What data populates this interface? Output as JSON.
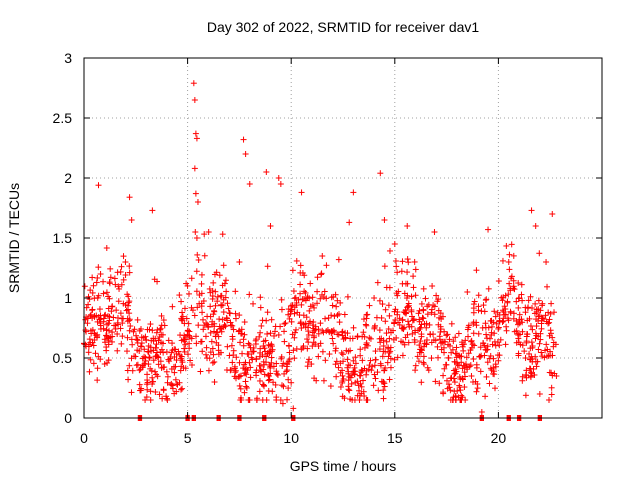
{
  "chart_data": {
    "type": "scatter",
    "title": "Day 302 of 2022, SRMTID for receiver dav1",
    "xlabel": "GPS time / hours",
    "ylabel": "SRMTID / TECUs",
    "xlim": [
      0,
      25
    ],
    "ylim": [
      0,
      3
    ],
    "xticks": [
      0,
      5,
      10,
      15,
      20
    ],
    "xtick_labels": [
      "0",
      "5",
      "10",
      "15",
      "20"
    ],
    "yticks": [
      0,
      0.5,
      1,
      1.5,
      2,
      2.5,
      3
    ],
    "ytick_labels": [
      "0",
      "0.5",
      "1",
      "1.5",
      "2",
      "2.5",
      "3"
    ],
    "grid": true,
    "marker": "+",
    "series": [
      {
        "name": "SRMTID",
        "color": "#ff0000",
        "mean_level": 0.65,
        "typical_range": [
          0.2,
          1.4
        ],
        "x_range": [
          0,
          22.8
        ],
        "points": [
          [
            0.1,
            0.72
          ],
          [
            0.3,
            0.85
          ],
          [
            0.5,
            0.65
          ],
          [
            0.7,
            1.94
          ],
          [
            0.8,
            1.2
          ],
          [
            1.0,
            0.45
          ],
          [
            1.6,
            0.7
          ],
          [
            2.0,
            1.3
          ],
          [
            2.2,
            1.84
          ],
          [
            2.3,
            1.65
          ],
          [
            3.3,
            1.73
          ],
          [
            4.0,
            0.55
          ],
          [
            5.3,
            2.79
          ],
          [
            5.35,
            2.65
          ],
          [
            5.4,
            2.37
          ],
          [
            5.45,
            2.33
          ],
          [
            5.35,
            2.08
          ],
          [
            5.4,
            1.87
          ],
          [
            5.5,
            1.8
          ],
          [
            5.45,
            1.5
          ],
          [
            6.3,
            0.3
          ],
          [
            6.9,
            0.4
          ],
          [
            7.5,
            1.3
          ],
          [
            7.7,
            2.32
          ],
          [
            7.8,
            2.2
          ],
          [
            8.0,
            1.95
          ],
          [
            8.8,
            2.05
          ],
          [
            9.0,
            1.6
          ],
          [
            9.4,
            2.0
          ],
          [
            9.5,
            1.95
          ],
          [
            9.6,
            0.12
          ],
          [
            10.1,
            0.08
          ],
          [
            10.5,
            1.88
          ],
          [
            11.5,
            1.35
          ],
          [
            12.3,
            1.32
          ],
          [
            12.8,
            1.63
          ],
          [
            13.0,
            1.88
          ],
          [
            13.4,
            0.4
          ],
          [
            14.0,
            1.0
          ],
          [
            14.3,
            2.04
          ],
          [
            14.5,
            1.65
          ],
          [
            15.0,
            1.45
          ],
          [
            15.6,
            1.6
          ],
          [
            15.8,
            0.9
          ],
          [
            16.8,
            1.1
          ],
          [
            17.6,
            0.5
          ],
          [
            18.5,
            1.05
          ],
          [
            18.7,
            0.35
          ],
          [
            19.2,
            0.05
          ],
          [
            19.5,
            1.57
          ],
          [
            20.2,
            0.8
          ],
          [
            20.5,
            1.3
          ],
          [
            21.0,
            1.0
          ],
          [
            21.6,
            1.73
          ],
          [
            21.8,
            1.6
          ],
          [
            22.0,
            0.2
          ],
          [
            22.3,
            1.3
          ],
          [
            22.6,
            1.7
          ],
          [
            22.8,
            0.35
          ]
        ],
        "zero_values_x": [
          2.7,
          5.0,
          5.3,
          6.5,
          7.5,
          8.7,
          10.1,
          19.2,
          20.5,
          21.0,
          22.0
        ]
      }
    ]
  }
}
